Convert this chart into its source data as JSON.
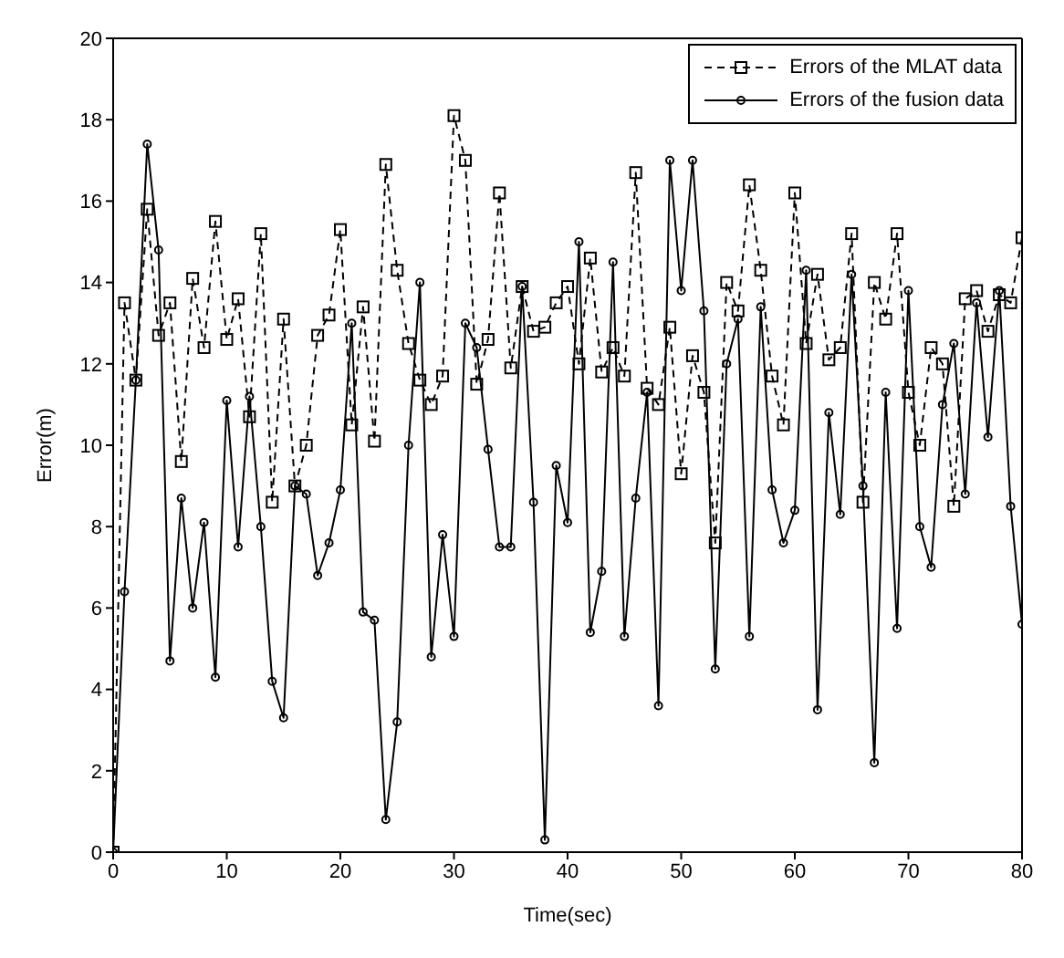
{
  "chart_data": {
    "type": "line",
    "xlabel": "Time(sec)",
    "ylabel": "Error(m)",
    "x": [
      0,
      1,
      2,
      3,
      4,
      5,
      6,
      7,
      8,
      9,
      10,
      11,
      12,
      13,
      14,
      15,
      16,
      17,
      18,
      19,
      20,
      21,
      22,
      23,
      24,
      25,
      26,
      27,
      28,
      29,
      30,
      31,
      32,
      33,
      34,
      35,
      36,
      37,
      38,
      39,
      40,
      41,
      42,
      43,
      44,
      45,
      46,
      47,
      48,
      49,
      50,
      51,
      52,
      53,
      54,
      55,
      56,
      57,
      58,
      59,
      60,
      61,
      62,
      63,
      64,
      65,
      66,
      67,
      68,
      69,
      70,
      71,
      72,
      73,
      74,
      75,
      76,
      77,
      78,
      79,
      80
    ],
    "series": [
      {
        "name": "Errors of the MLAT data",
        "color": "#000000",
        "line_style": "dashed",
        "marker": "square",
        "values": [
          0,
          13.5,
          11.6,
          15.8,
          12.7,
          13.5,
          9.6,
          14.1,
          12.4,
          15.5,
          12.6,
          13.6,
          10.7,
          15.2,
          8.6,
          13.1,
          9.0,
          10.0,
          12.7,
          13.2,
          15.3,
          10.5,
          13.4,
          10.1,
          16.9,
          14.3,
          12.5,
          11.6,
          11.0,
          11.7,
          18.1,
          17.0,
          11.5,
          12.6,
          16.2,
          11.9,
          13.9,
          12.8,
          12.9,
          13.5,
          13.9,
          12.0,
          14.6,
          11.8,
          12.4,
          11.7,
          16.7,
          11.4,
          11.0,
          12.9,
          9.3,
          12.2,
          11.3,
          7.6,
          14.0,
          13.3,
          16.4,
          14.3,
          11.7,
          10.5,
          16.2,
          12.5,
          14.2,
          12.1,
          12.4,
          15.2,
          8.6,
          14.0,
          13.1,
          15.2,
          11.3,
          10.0,
          12.4,
          12.0,
          8.5,
          13.6,
          13.8,
          12.8,
          13.7,
          13.5,
          15.1
        ]
      },
      {
        "name": "Errors of the fusion data",
        "color": "#000000",
        "line_style": "solid",
        "marker": "circle",
        "values": [
          0,
          6.4,
          11.6,
          17.4,
          14.8,
          4.7,
          8.7,
          6.0,
          8.1,
          4.3,
          11.1,
          7.5,
          11.2,
          8.0,
          4.2,
          3.3,
          9.0,
          8.8,
          6.8,
          7.6,
          8.9,
          13.0,
          5.9,
          5.7,
          0.8,
          3.2,
          10.0,
          14.0,
          4.8,
          7.8,
          5.3,
          13.0,
          12.4,
          9.9,
          7.5,
          7.5,
          13.9,
          8.6,
          0.3,
          9.5,
          8.1,
          15.0,
          5.4,
          6.9,
          14.5,
          5.3,
          8.7,
          11.3,
          3.6,
          17.0,
          13.8,
          17.0,
          13.3,
          4.5,
          12.0,
          13.1,
          5.3,
          13.4,
          8.9,
          7.6,
          8.4,
          14.3,
          3.5,
          10.8,
          8.3,
          14.2,
          9.0,
          2.2,
          11.3,
          5.5,
          13.8,
          8.0,
          7.0,
          11.0,
          12.5,
          8.8,
          13.5,
          10.2,
          13.8,
          8.5,
          5.6
        ]
      }
    ],
    "xlim": [
      0,
      80
    ],
    "xticks": [
      0,
      10,
      20,
      30,
      40,
      50,
      60,
      70,
      80
    ],
    "ylim": [
      0,
      20
    ],
    "yticks": [
      0,
      2,
      4,
      6,
      8,
      10,
      12,
      14,
      16,
      18,
      20
    ],
    "grid": false,
    "legend": "top right"
  }
}
